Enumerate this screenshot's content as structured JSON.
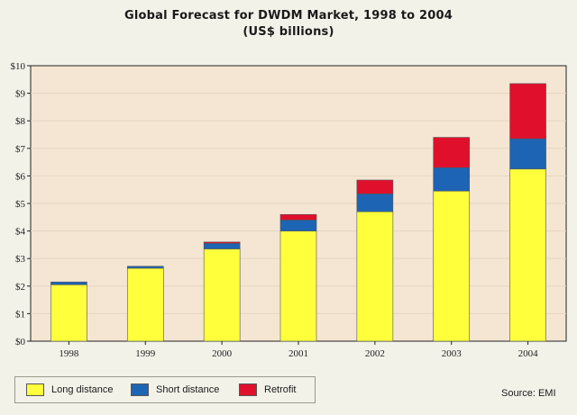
{
  "chart_data": {
    "type": "bar",
    "stacked": true,
    "title": "Global Forecast for DWDM Market, 1998 to 2004",
    "subtitle": "(US$ billions)",
    "categories": [
      "1998",
      "1999",
      "2000",
      "2001",
      "2002",
      "2003",
      "2004"
    ],
    "series": [
      {
        "name": "Long distance",
        "color": "#ffff3c",
        "values": [
          2.05,
          2.65,
          3.35,
          4.0,
          4.7,
          5.45,
          6.25
        ]
      },
      {
        "name": "Short distance",
        "color": "#1e64b4",
        "values": [
          0.1,
          0.07,
          0.2,
          0.4,
          0.65,
          0.85,
          1.1
        ]
      },
      {
        "name": "Retrofit",
        "color": "#e0102c",
        "values": [
          0.0,
          0.0,
          0.05,
          0.2,
          0.5,
          1.1,
          2.0
        ]
      }
    ],
    "y_tick_labels": [
      "$0",
      "$1",
      "$2",
      "$3",
      "$4",
      "$5",
      "$6",
      "$7",
      "$8",
      "$9",
      "$10"
    ],
    "ylim": [
      0,
      10
    ],
    "plot_background": "#f4e6d2",
    "grid": true,
    "legend_position": "bottom-left",
    "source": "Source: EMI"
  }
}
